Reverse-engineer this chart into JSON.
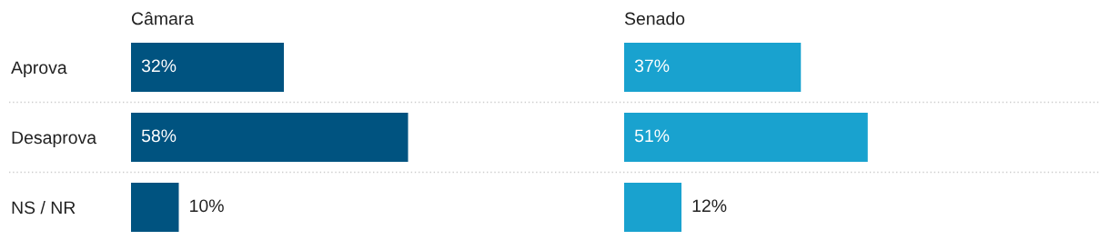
{
  "chart_data": [
    {
      "type": "bar",
      "orientation": "horizontal",
      "title": "Câmara",
      "categories": [
        "Aprova",
        "Desaprova",
        "NS / NR"
      ],
      "values": [
        32,
        58,
        10
      ],
      "value_labels": [
        "32%",
        "58%",
        "10%"
      ],
      "color": "#005380",
      "tick_labels": "y"
    },
    {
      "type": "bar",
      "orientation": "horizontal",
      "title": "Senado",
      "categories": [
        null,
        null,
        null
      ],
      "values": [
        37,
        51,
        12
      ],
      "value_labels": [
        "37%",
        "51%",
        "12%"
      ],
      "color": "#19a2cf",
      "tick_labels": false
    }
  ]
}
